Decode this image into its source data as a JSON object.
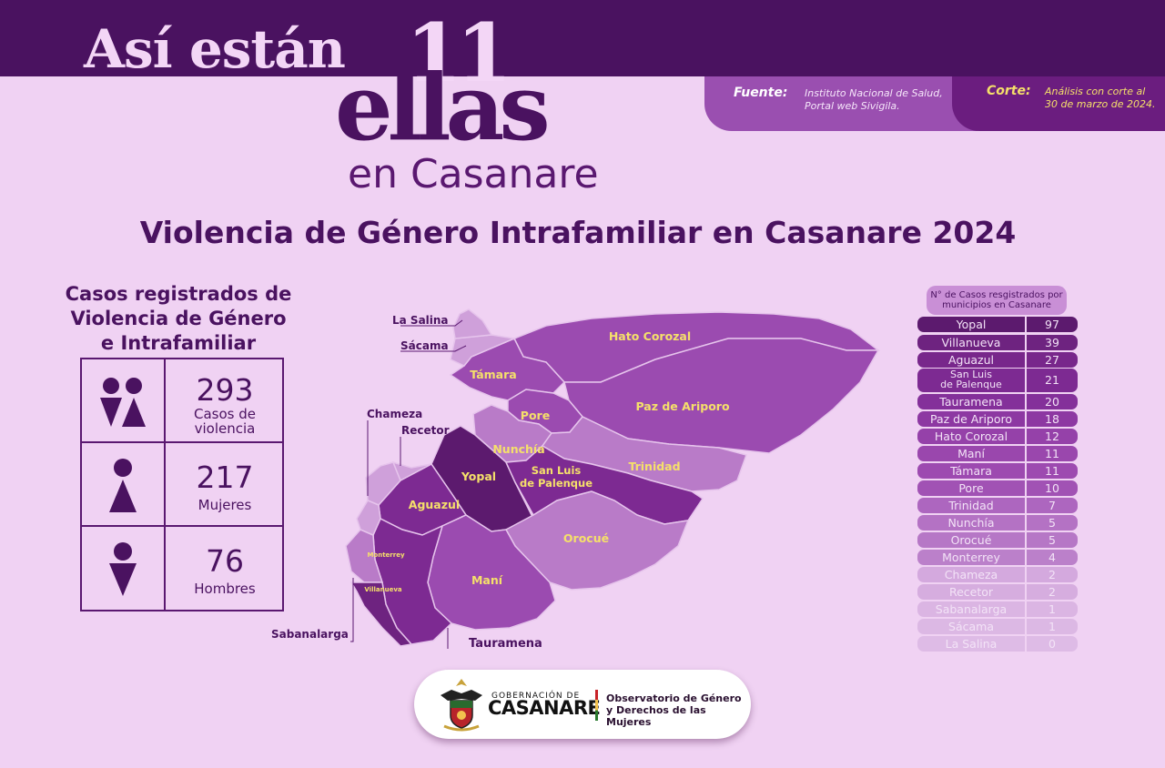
{
  "brand": {
    "line1": "Así están",
    "number": "11",
    "line2": "ellas",
    "line3": "en Casanare"
  },
  "source": {
    "label": "Fuente:",
    "text": "Instituto Nacional de Salud, Portal web Sivigila."
  },
  "cutoff": {
    "label": "Corte:",
    "text": "Análisis con corte al 30 de marzo de 2024."
  },
  "main_title": "Violencia de Género Intrafamiliar en Casanare 2024",
  "stats": {
    "title": "Casos registrados de\nViolencia de Género\ne Intrafamiliar",
    "total": {
      "value": "293",
      "label": "Casos de violencia",
      "icon": "women-men-icon"
    },
    "women": {
      "value": "217",
      "label": "Mujeres",
      "icon": "woman-icon"
    },
    "men": {
      "value": "76",
      "label": "Hombres",
      "icon": "man-icon"
    }
  },
  "map": {
    "labels": {
      "la_salina": "La Salina",
      "sacama": "Sácama",
      "chameza": "Chameza",
      "recetor": "Recetor",
      "sabanalarga": "Sabanalarga",
      "tauramena": "Tauramena",
      "hato_corozal": "Hato Corozal",
      "tamara": "Támara",
      "paz_de_ariporo": "Paz de Ariporo",
      "pore": "Pore",
      "nunchia": "Nunchía",
      "yopal": "Yopal",
      "trinidad": "Trinidad",
      "san_luis_1": "San Luis",
      "san_luis_2": "de Palenque",
      "aguazul": "Aguazul",
      "monterrey": "Monterrey",
      "villanueva": "Villanueva",
      "orocue": "Orocué",
      "mani": "Maní"
    },
    "colors": {
      "darkest": "#5c1a6e",
      "dark": "#7d2a92",
      "mid": "#9b4bb0",
      "light": "#b97bc8",
      "lighter": "#cfa0da",
      "label": "#f5e06a"
    }
  },
  "ranking": {
    "header": "N° de Casos resgistrados por municipios en Casanare",
    "rows": [
      {
        "name": "Yopal",
        "value": "97",
        "color": "#5c1a6e"
      },
      {
        "name": "Villanueva",
        "value": "39",
        "color": "#6e2380"
      },
      {
        "name": "Aguazul",
        "value": "27",
        "color": "#78278b"
      },
      {
        "name": "San Luis de Palenque",
        "name1": "San Luis",
        "name2": "de Palenque",
        "value": "21",
        "color": "#7d2a92"
      },
      {
        "name": "Tauramena",
        "value": "20",
        "color": "#84309a"
      },
      {
        "name": "Paz de Ariporo",
        "value": "18",
        "color": "#8d38a2"
      },
      {
        "name": "Hato Corozal",
        "value": "12",
        "color": "#9541a9"
      },
      {
        "name": "Maní",
        "value": "11",
        "color": "#9a47ad"
      },
      {
        "name": "Támara",
        "value": "11",
        "color": "#9d4ab0"
      },
      {
        "name": "Pore",
        "value": "10",
        "color": "#a152b4"
      },
      {
        "name": "Trinidad",
        "value": "7",
        "color": "#ad66bf"
      },
      {
        "name": "Nunchía",
        "value": "5",
        "color": "#b472c4"
      },
      {
        "name": "Orocué",
        "value": "5",
        "color": "#b677c6"
      },
      {
        "name": "Monterrey",
        "value": "4",
        "color": "#bb80ca"
      },
      {
        "name": "Chameza",
        "value": "2",
        "color": "#d4a9de"
      },
      {
        "name": "Recetor",
        "value": "2",
        "color": "#d6addf"
      },
      {
        "name": "Sabanalarga",
        "value": "1",
        "color": "#dbb5e3"
      },
      {
        "name": "Sácama",
        "value": "1",
        "color": "#dcb8e4"
      },
      {
        "name": "La Salina",
        "value": "0",
        "color": "#debbe6"
      }
    ]
  },
  "footer": {
    "gov_top": "GOBERNACIÓN DE",
    "gov_name": "CASANARE",
    "observatory": "Observatorio de Género\ny Derechos de las Mujeres",
    "icon": "casanare-coat-of-arms-icon"
  }
}
